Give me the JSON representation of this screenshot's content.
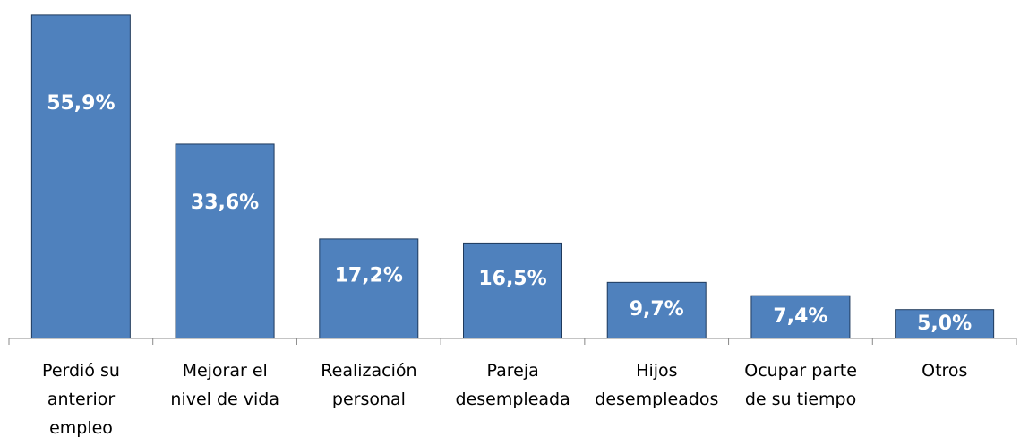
{
  "chart_data": {
    "type": "bar",
    "categories": [
      "Perdió su\nanterior\nempleo",
      "Mejorar el\nnivel de vida",
      "Realización\npersonal",
      "Pareja\ndesempleada",
      "Hijos\ndesempleados",
      "Ocupar parte\nde su tiempo",
      "Otros"
    ],
    "values": [
      55.9,
      33.6,
      17.2,
      16.5,
      9.7,
      7.4,
      5.0
    ],
    "value_labels": [
      "55,9%",
      "33,6%",
      "17,2%",
      "16,5%",
      "9,7%",
      "7,4%",
      "5,0%"
    ],
    "color": "#4f81bd"
  }
}
